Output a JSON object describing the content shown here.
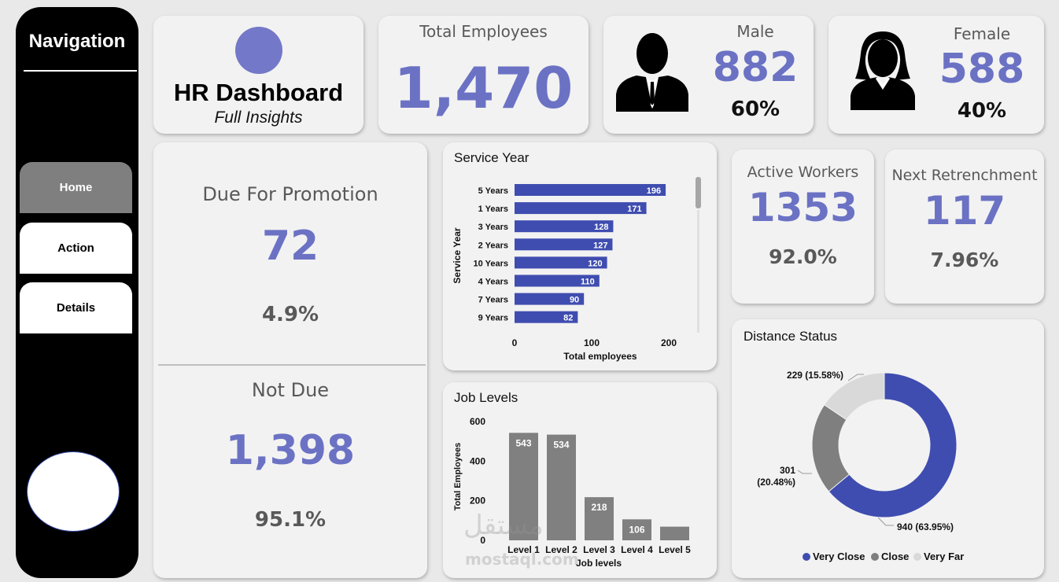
{
  "navigation": {
    "title": "Navigation",
    "buttons": [
      {
        "label": "Home"
      },
      {
        "label": "Action"
      },
      {
        "label": "Details"
      }
    ]
  },
  "header": {
    "title": "HR Dashboard",
    "subtitle": "Full Insights",
    "logo_color": "#7478c8"
  },
  "kpis": {
    "total_employees": {
      "label": "Total Employees",
      "value": "1,470"
    },
    "male": {
      "label": "Male",
      "value": "882",
      "percent": "60%"
    },
    "female": {
      "label": "Female",
      "value": "588",
      "percent": "40%"
    },
    "promotion_due": {
      "label": "Due For Promotion",
      "value": "72",
      "percent": "4.9%"
    },
    "promotion_not_due": {
      "label": "Not Due",
      "value": "1,398",
      "percent": "95.1%"
    },
    "active_workers": {
      "label": "Active Workers",
      "value": "1353",
      "percent": "92.0%"
    },
    "next_retrenchment": {
      "label": "Next Retrenchment",
      "value": "117",
      "percent": "7.96%"
    }
  },
  "colors": {
    "accent": "#6b72c4",
    "bar_blue": "#3f4db0",
    "bar_gray": "#808080",
    "donut_gray": "#7f7f7f",
    "donut_light": "#d9d9d9"
  },
  "watermark": {
    "arabic": "مستقل",
    "latin": "mostaql.com"
  },
  "chart_data": [
    {
      "type": "bar",
      "orientation": "horizontal",
      "title": "Service Year",
      "ylabel": "Service Year",
      "xlabel": "Total employees",
      "categories": [
        "5 Years",
        "1 Years",
        "3 Years",
        "2 Years",
        "10 Years",
        "4 Years",
        "7 Years",
        "9 Years"
      ],
      "values": [
        196,
        171,
        128,
        127,
        120,
        110,
        90,
        82
      ],
      "xticks": [
        "0",
        "100",
        "200"
      ],
      "xlim": [
        0,
        200
      ]
    },
    {
      "type": "bar",
      "title": "Job Levels",
      "ylabel": "Total Employees",
      "xlabel": "Job levels",
      "categories": [
        "Level 1",
        "Level 2",
        "Level 3",
        "Level 4",
        "Level 5"
      ],
      "values": [
        543,
        534,
        218,
        106,
        69
      ],
      "data_labels": [
        "543",
        "534",
        "218",
        "106",
        ""
      ],
      "yticks": [
        "0",
        "200",
        "400",
        "600"
      ],
      "ylim": [
        0,
        600
      ]
    },
    {
      "type": "pie",
      "style": "donut",
      "title": "Distance Status",
      "slices": [
        {
          "name": "Very Close",
          "value": 940,
          "label": "940 (63.95%)",
          "color": "#3f4db0"
        },
        {
          "name": "Close",
          "value": 301,
          "label_line1": "301",
          "label_line2": "(20.48%)",
          "color": "#7f7f7f"
        },
        {
          "name": "Very Far",
          "value": 229,
          "label": "229 (15.58%)",
          "color": "#d9d9d9"
        }
      ],
      "legend_position": "bottom"
    }
  ]
}
